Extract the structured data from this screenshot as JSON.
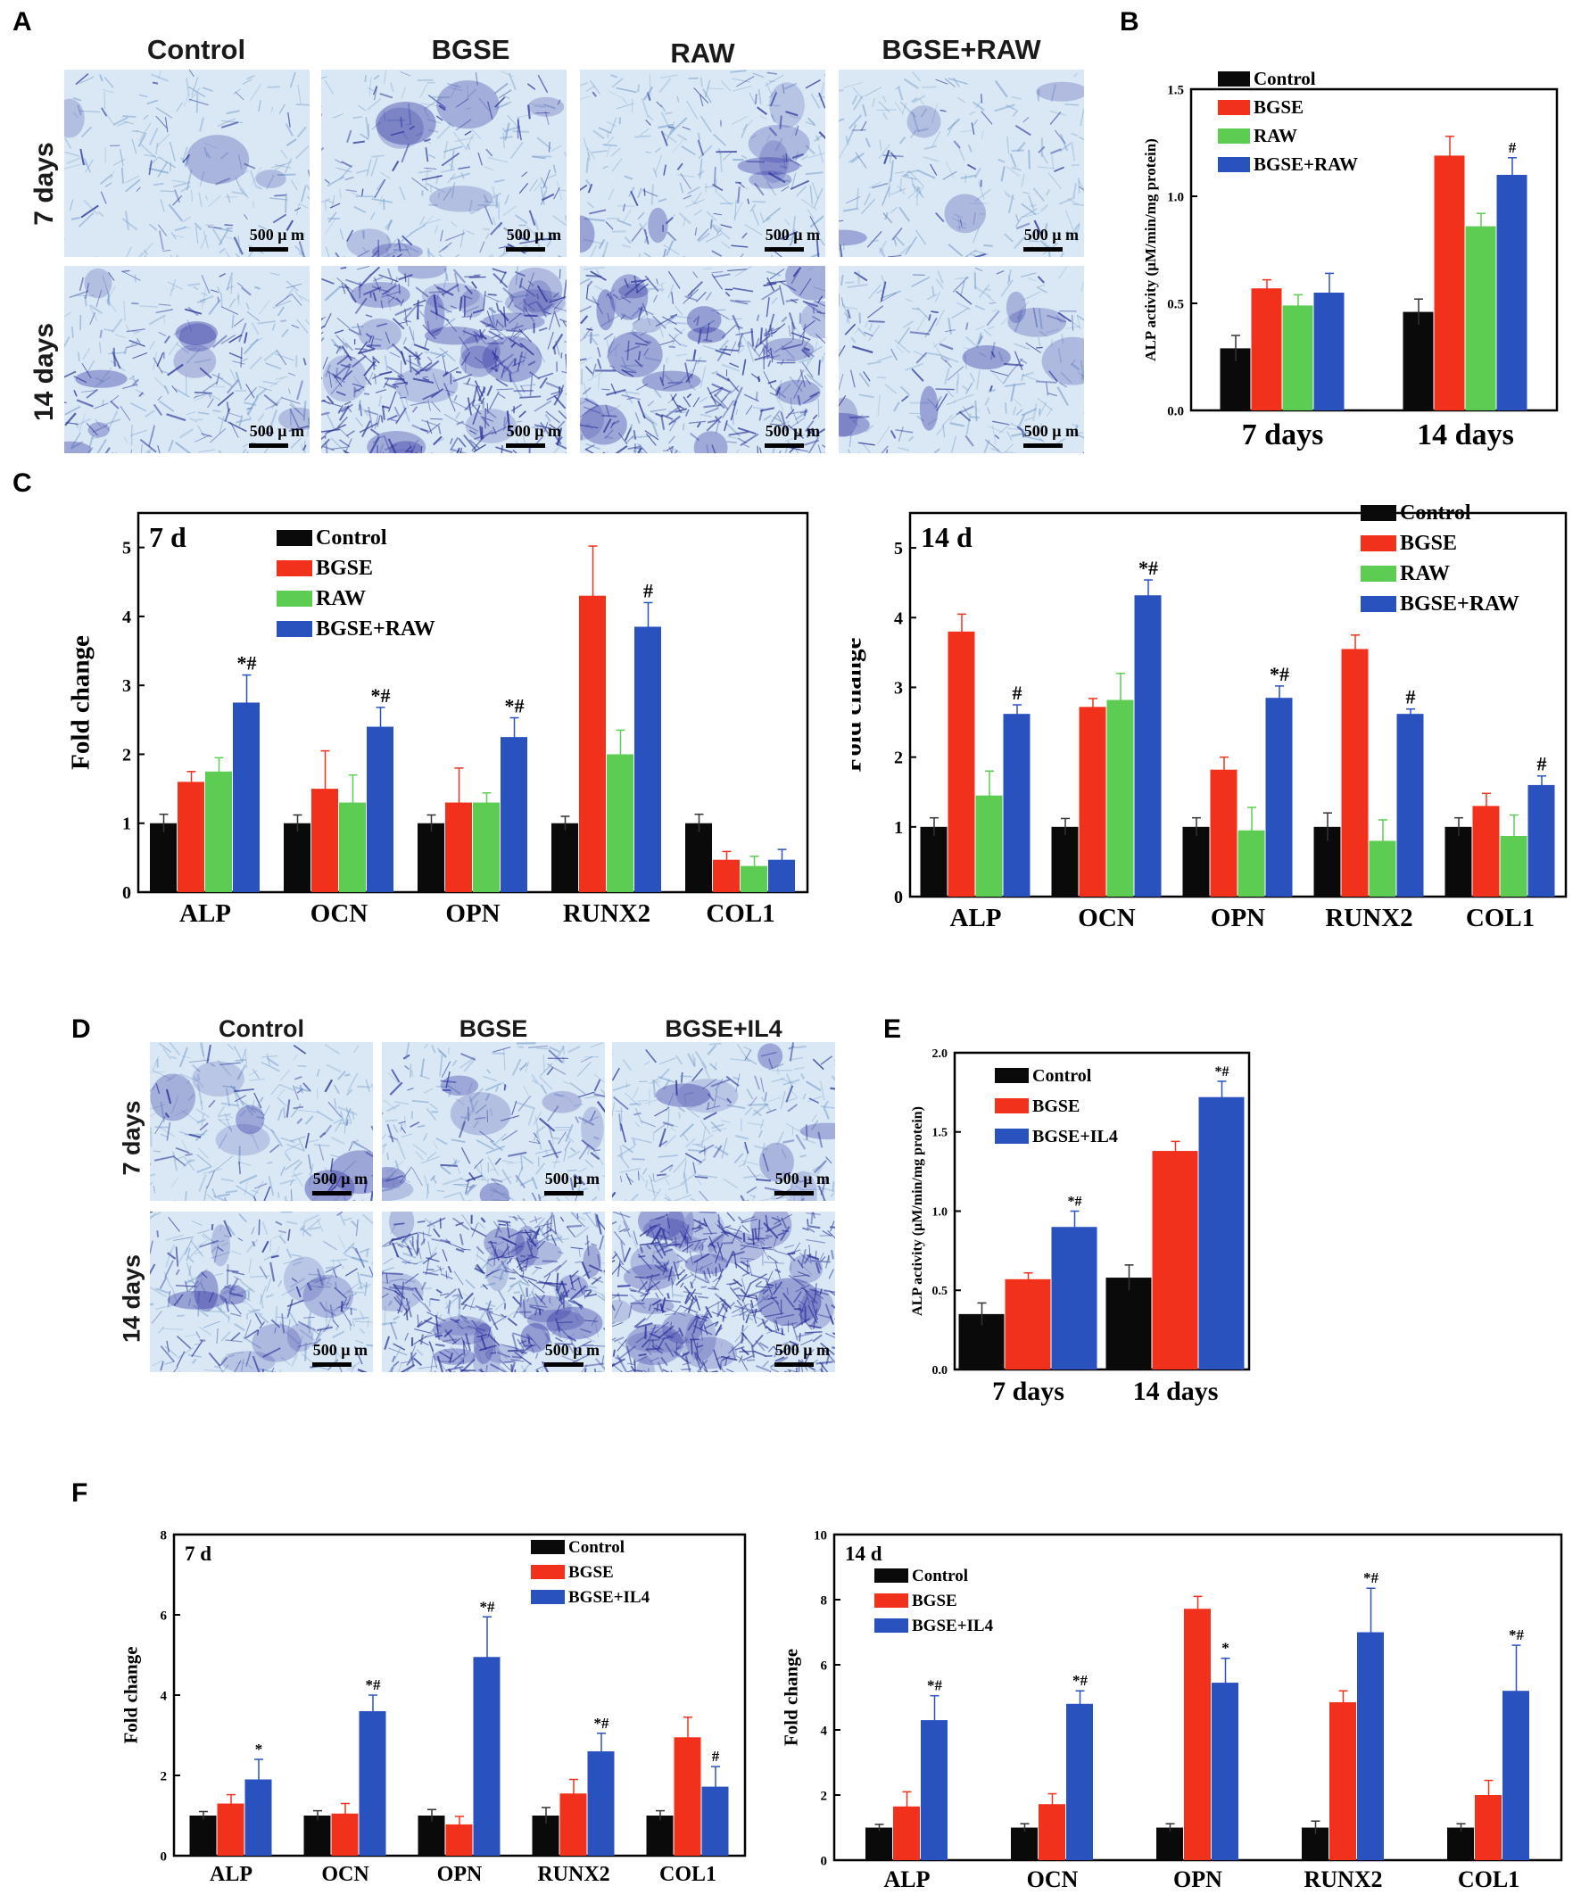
{
  "panels": {
    "A": {
      "letter": "A",
      "col_headers": [
        "Control",
        "BGSE",
        "RAW",
        "BGSE+RAW"
      ],
      "row_headers": [
        "7 days",
        "14 days"
      ],
      "scale_label": "500 μ m"
    },
    "B": {
      "letter": "B"
    },
    "C": {
      "letter": "C"
    },
    "D": {
      "letter": "D",
      "col_headers": [
        "Control",
        "BGSE",
        "BGSE+IL4"
      ],
      "row_headers": [
        "7 days",
        "14 days"
      ],
      "scale_label": "500 μ m"
    },
    "E": {
      "letter": "E"
    },
    "F": {
      "letter": "F"
    }
  },
  "colors": {
    "Control": "#0a0a0a",
    "BGSE": "#f2311c",
    "RAW": "#5ccc52",
    "BGSE+RAW": "#2a52bf",
    "BGSE+IL4": "#2a52bf"
  },
  "chart_data": [
    {
      "id": "B",
      "type": "bar",
      "ylabel": "ALP activity (μM/min/mg protein)",
      "categories": [
        "7 days",
        "14 days"
      ],
      "ylim": [
        0,
        1.5
      ],
      "yticks": [
        "0.0",
        "0.5",
        "1.0",
        "1.5"
      ],
      "series": [
        {
          "name": "Control",
          "values": [
            0.29,
            0.46
          ],
          "errors": [
            0.06,
            0.06
          ],
          "marks": [
            "",
            ""
          ]
        },
        {
          "name": "BGSE",
          "values": [
            0.57,
            1.19
          ],
          "errors": [
            0.04,
            0.09
          ],
          "marks": [
            "",
            ""
          ]
        },
        {
          "name": "RAW",
          "values": [
            0.49,
            0.86
          ],
          "errors": [
            0.05,
            0.06
          ],
          "marks": [
            "",
            ""
          ]
        },
        {
          "name": "BGSE+RAW",
          "values": [
            0.55,
            1.1
          ],
          "errors": [
            0.09,
            0.08
          ],
          "marks": [
            "",
            "#"
          ]
        }
      ]
    },
    {
      "id": "C1",
      "type": "bar",
      "title": "7 d",
      "ylabel": "Fold change",
      "categories": [
        "ALP",
        "OCN",
        "OPN",
        "RUNX2",
        "COL1"
      ],
      "ylim": [
        0,
        5.5
      ],
      "yticks": [
        "0",
        "1",
        "2",
        "3",
        "4",
        "5"
      ],
      "series": [
        {
          "name": "Control",
          "values": [
            1,
            1,
            1,
            1,
            1
          ],
          "errors": [
            0.13,
            0.12,
            0.12,
            0.1,
            0.13
          ],
          "marks": [
            "",
            "",
            "",
            "",
            ""
          ]
        },
        {
          "name": "BGSE",
          "values": [
            1.6,
            1.5,
            1.3,
            4.3,
            0.47
          ],
          "errors": [
            0.15,
            0.55,
            0.5,
            0.72,
            0.12
          ],
          "marks": [
            "",
            "",
            "",
            "",
            ""
          ]
        },
        {
          "name": "RAW",
          "values": [
            1.75,
            1.3,
            1.3,
            2.0,
            0.38
          ],
          "errors": [
            0.2,
            0.4,
            0.14,
            0.35,
            0.14
          ],
          "marks": [
            "",
            "",
            "",
            "",
            ""
          ]
        },
        {
          "name": "BGSE+RAW",
          "values": [
            2.75,
            2.4,
            2.25,
            3.85,
            0.47
          ],
          "errors": [
            0.4,
            0.28,
            0.28,
            0.35,
            0.15
          ],
          "marks": [
            "*#",
            "*#",
            "*#",
            "#",
            ""
          ]
        }
      ]
    },
    {
      "id": "C2",
      "type": "bar",
      "title": "14 d",
      "ylabel": "Fold change",
      "categories": [
        "ALP",
        "OCN",
        "OPN",
        "RUNX2",
        "COL1"
      ],
      "ylim": [
        0,
        5.5
      ],
      "yticks": [
        "0",
        "1",
        "2",
        "3",
        "4",
        "5"
      ],
      "series": [
        {
          "name": "Control",
          "values": [
            1,
            1,
            1,
            1,
            1
          ],
          "errors": [
            0.13,
            0.12,
            0.13,
            0.2,
            0.13
          ],
          "marks": [
            "",
            "",
            "",
            "",
            ""
          ]
        },
        {
          "name": "BGSE",
          "values": [
            3.8,
            2.72,
            1.82,
            3.55,
            1.3
          ],
          "errors": [
            0.25,
            0.12,
            0.18,
            0.2,
            0.18
          ],
          "marks": [
            "",
            "",
            "",
            "",
            ""
          ]
        },
        {
          "name": "RAW",
          "values": [
            1.45,
            2.82,
            0.95,
            0.8,
            0.87
          ],
          "errors": [
            0.35,
            0.38,
            0.33,
            0.3,
            0.3
          ],
          "marks": [
            "",
            "",
            "",
            "",
            ""
          ]
        },
        {
          "name": "BGSE+RAW",
          "values": [
            2.62,
            4.32,
            2.85,
            2.62,
            1.6
          ],
          "errors": [
            0.13,
            0.22,
            0.17,
            0.07,
            0.13
          ],
          "marks": [
            "#",
            "*#",
            "*#",
            "#",
            "#"
          ]
        }
      ]
    },
    {
      "id": "E",
      "type": "bar",
      "ylabel": "ALP activity (μM/min/mg protein)",
      "categories": [
        "7 days",
        "14 days"
      ],
      "ylim": [
        0,
        2.0
      ],
      "yticks": [
        "0.0",
        "0.5",
        "1.0",
        "1.5",
        "2.0"
      ],
      "series": [
        {
          "name": "Control",
          "values": [
            0.35,
            0.58
          ],
          "errors": [
            0.07,
            0.08
          ],
          "marks": [
            "",
            ""
          ]
        },
        {
          "name": "BGSE",
          "values": [
            0.57,
            1.38
          ],
          "errors": [
            0.04,
            0.06
          ],
          "marks": [
            "",
            ""
          ]
        },
        {
          "name": "BGSE+IL4",
          "values": [
            0.9,
            1.72
          ],
          "errors": [
            0.1,
            0.1
          ],
          "marks": [
            "*#",
            "*#"
          ]
        }
      ]
    },
    {
      "id": "F1",
      "type": "bar",
      "title": "7 d",
      "ylabel": "Fold change",
      "categories": [
        "ALP",
        "OCN",
        "OPN",
        "RUNX2",
        "COL1"
      ],
      "ylim": [
        0,
        8
      ],
      "yticks": [
        "0",
        "2",
        "4",
        "6",
        "8"
      ],
      "series": [
        {
          "name": "Control",
          "values": [
            1,
            1,
            1,
            1,
            1
          ],
          "errors": [
            0.1,
            0.12,
            0.15,
            0.2,
            0.12
          ],
          "marks": [
            "",
            "",
            "",
            "",
            ""
          ]
        },
        {
          "name": "BGSE",
          "values": [
            1.3,
            1.05,
            0.78,
            1.55,
            2.95
          ],
          "errors": [
            0.22,
            0.25,
            0.2,
            0.35,
            0.5
          ],
          "marks": [
            "",
            "",
            "",
            "",
            ""
          ]
        },
        {
          "name": "BGSE+IL4",
          "values": [
            1.9,
            3.6,
            4.95,
            2.6,
            1.72
          ],
          "errors": [
            0.5,
            0.4,
            1.0,
            0.45,
            0.5
          ],
          "marks": [
            "*",
            "*#",
            "*#",
            "*#",
            "#"
          ]
        }
      ]
    },
    {
      "id": "F2",
      "type": "bar",
      "title": "14 d",
      "ylabel": "Fold change",
      "categories": [
        "ALP",
        "OCN",
        "OPN",
        "RUNX2",
        "COL1"
      ],
      "ylim": [
        0,
        10
      ],
      "yticks": [
        "0",
        "2",
        "4",
        "6",
        "8",
        "10"
      ],
      "series": [
        {
          "name": "Control",
          "values": [
            1,
            1,
            1,
            1,
            1
          ],
          "errors": [
            0.1,
            0.12,
            0.12,
            0.2,
            0.12
          ],
          "marks": [
            "",
            "",
            "",
            "",
            ""
          ]
        },
        {
          "name": "BGSE",
          "values": [
            1.65,
            1.72,
            7.72,
            4.85,
            2.0
          ],
          "errors": [
            0.45,
            0.32,
            0.38,
            0.35,
            0.45
          ],
          "marks": [
            "",
            "",
            "",
            "",
            ""
          ]
        },
        {
          "name": "BGSE+IL4",
          "values": [
            4.3,
            4.8,
            5.45,
            7.0,
            5.2
          ],
          "errors": [
            0.75,
            0.4,
            0.75,
            1.35,
            1.4
          ],
          "marks": [
            "*#",
            "*#",
            "*",
            "*#",
            "*#"
          ]
        }
      ]
    }
  ]
}
